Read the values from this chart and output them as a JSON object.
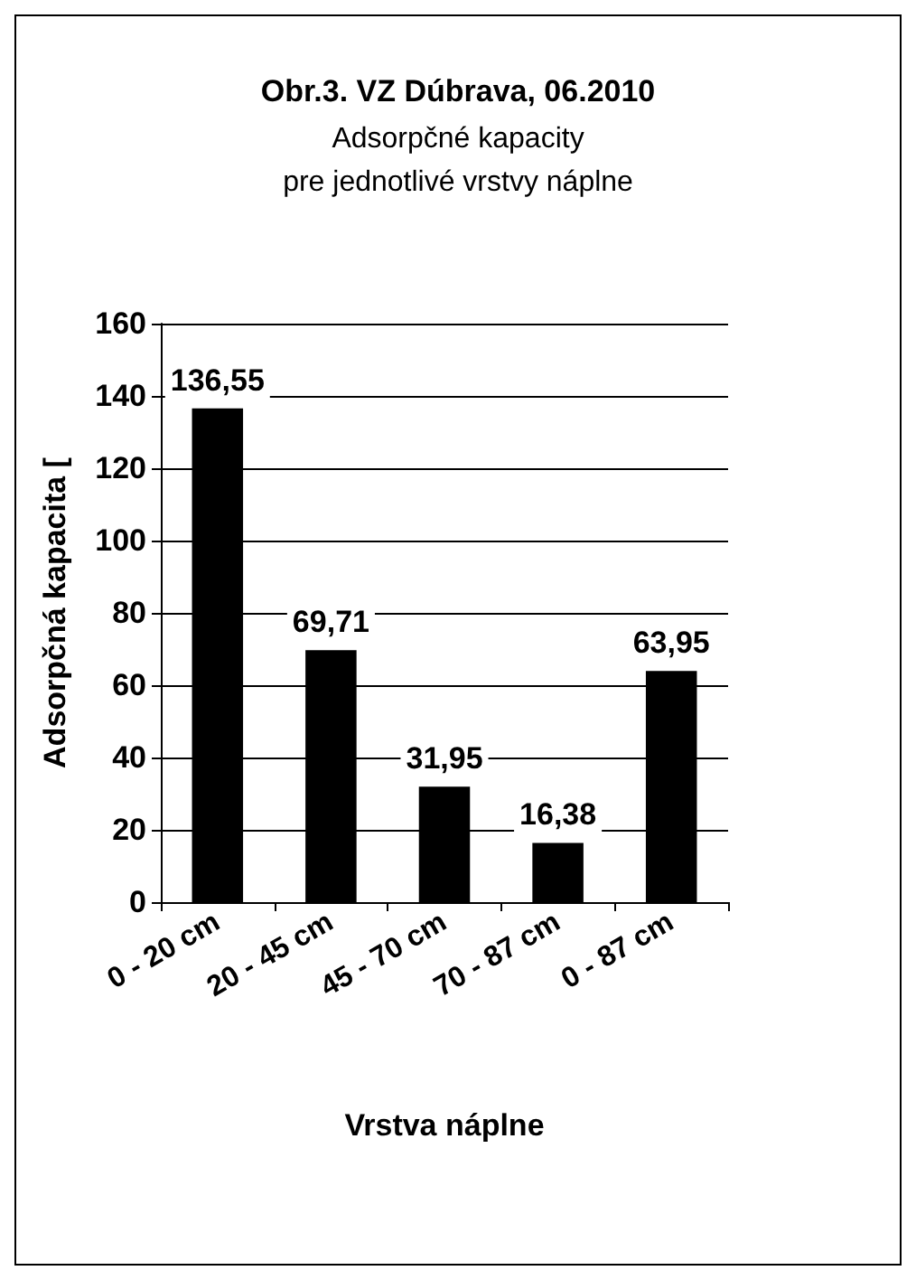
{
  "chart_data": {
    "type": "bar",
    "title": "Obr.3. VZ Dúbrava, 06.2010",
    "subtitle": "Adsorpčné kapacity\npre jednotlivé vrstvy náplne",
    "xlabel": "Vrstva náplne",
    "ylabel": "Adsorpčná kapacita [",
    "categories": [
      "0 - 20 cm",
      "20 - 45 cm",
      "45 - 70 cm",
      "70 - 87 cm",
      "0 - 87 cm"
    ],
    "values": [
      136.55,
      69.71,
      31.95,
      16.38,
      63.95
    ],
    "value_labels": [
      "136,55",
      "69,71",
      "31,95",
      "16,38",
      "63,95"
    ],
    "color": "#000000",
    "ylim": [
      0,
      160
    ],
    "yticks": [
      0,
      20,
      40,
      60,
      80,
      100,
      120,
      140,
      160
    ],
    "grid": "y"
  }
}
